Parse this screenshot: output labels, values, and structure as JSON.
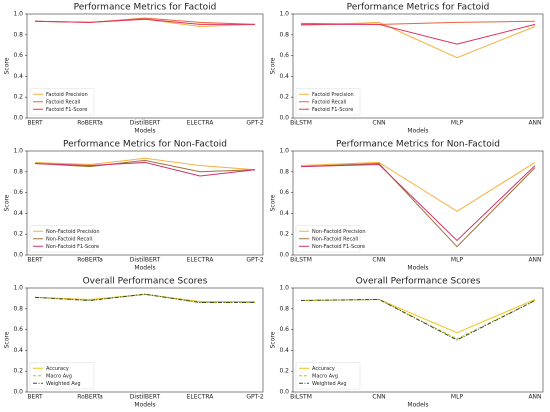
{
  "chart_data": [
    {
      "type": "line",
      "title": "Performance Metrics for Factoid",
      "x_label": "Models",
      "y_label": "Score",
      "categories": [
        "BERT",
        "RoBERTa",
        "DistilBERT",
        "ELECTRA",
        "GPT-2"
      ],
      "series": [
        {
          "name": "Factoid Precision",
          "color": "#f5b041",
          "linestyle": "solid",
          "values": [
            0.93,
            0.92,
            0.95,
            0.88,
            0.9
          ]
        },
        {
          "name": "Factoid Recall",
          "color": "#e8643c",
          "linestyle": "solid",
          "values": [
            0.93,
            0.92,
            0.96,
            0.92,
            0.9
          ]
        },
        {
          "name": "Factoid F1-Score",
          "color": "#e0305e",
          "linestyle": "solid",
          "values": [
            0.93,
            0.92,
            0.95,
            0.9,
            0.9
          ]
        }
      ],
      "ylim": [
        0,
        1
      ],
      "yticks": [
        {
          "value": 0,
          "label": "0.0"
        },
        0.2,
        0.4,
        0.6,
        0.8,
        {
          "value": 1,
          "label": "1.0"
        }
      ],
      "legend": "lower left"
    },
    {
      "type": "line",
      "title": "Performance Metrics for Factoid",
      "x_label": "Models",
      "y_label": "Score",
      "categories": [
        "BiLSTM",
        "CNN",
        "MLP",
        "ANN"
      ],
      "series": [
        {
          "name": "Factoid Precision",
          "color": "#f5b041",
          "linestyle": "solid",
          "values": [
            0.89,
            0.92,
            0.58,
            0.88
          ]
        },
        {
          "name": "Factoid Recall",
          "color": "#e8643c",
          "linestyle": "solid",
          "values": [
            0.91,
            0.9,
            0.92,
            0.93
          ]
        },
        {
          "name": "Factoid F1-Score",
          "color": "#e0305e",
          "linestyle": "solid",
          "values": [
            0.9,
            0.9,
            0.71,
            0.9
          ]
        }
      ],
      "ylim": [
        0,
        1
      ],
      "yticks": [
        {
          "value": 0,
          "label": "0.0"
        },
        0.2,
        0.4,
        0.6,
        0.8,
        {
          "value": 1,
          "label": "1.0"
        }
      ],
      "legend": "lower left"
    },
    {
      "type": "line",
      "title": "Performance Metrics for Non-Factoid",
      "x_label": "Models",
      "y_label": "Score",
      "categories": [
        "BERT",
        "RoBERTa",
        "DistilBERT",
        "ELECTRA",
        "GPT-2"
      ],
      "series": [
        {
          "name": "Non-Factoid Precision",
          "color": "#f5b041",
          "linestyle": "solid",
          "values": [
            0.89,
            0.87,
            0.93,
            0.86,
            0.82
          ]
        },
        {
          "name": "Non-Factoid Recall",
          "color": "#a0703a",
          "linestyle": "solid",
          "values": [
            0.88,
            0.85,
            0.91,
            0.8,
            0.82
          ]
        },
        {
          "name": "Non-Factoid F1-Score",
          "color": "#d0306a",
          "linestyle": "solid",
          "values": [
            0.88,
            0.86,
            0.89,
            0.76,
            0.82
          ]
        }
      ],
      "ylim": [
        0,
        1
      ],
      "yticks": [
        {
          "value": 0,
          "label": "0.0"
        },
        0.2,
        0.4,
        0.6,
        0.8,
        {
          "value": 1,
          "label": "1.0"
        }
      ],
      "legend": "lower left"
    },
    {
      "type": "line",
      "title": "Performance Metrics for Non-Factoid",
      "x_label": "Models",
      "y_label": "Score",
      "categories": [
        "BiLSTM",
        "CNN",
        "MLP",
        "ANN"
      ],
      "series": [
        {
          "name": "Non-Factoid Precision",
          "color": "#f5b041",
          "linestyle": "solid",
          "values": [
            0.86,
            0.89,
            0.42,
            0.89
          ]
        },
        {
          "name": "Non-Factoid Recall",
          "color": "#a0703a",
          "linestyle": "solid",
          "values": [
            0.85,
            0.88,
            0.08,
            0.84
          ]
        },
        {
          "name": "Non-Factoid F1-Score",
          "color": "#d0306a",
          "linestyle": "solid",
          "values": [
            0.85,
            0.87,
            0.14,
            0.86
          ]
        }
      ],
      "ylim": [
        0,
        1
      ],
      "yticks": [
        {
          "value": 0,
          "label": "0.0"
        },
        0.2,
        0.4,
        0.6,
        0.8,
        {
          "value": 1,
          "label": "1.0"
        }
      ],
      "legend": "lower left"
    },
    {
      "type": "line",
      "title": "Overall Performance Scores",
      "x_label": "Models",
      "y_label": "Score",
      "categories": [
        "BERT",
        "RoBERTa",
        "DistilBERT",
        "ELECTRA",
        "GPT-2"
      ],
      "series": [
        {
          "name": "Accuracy",
          "color": "#f0c419",
          "linestyle": "solid",
          "values": [
            0.91,
            0.89,
            0.94,
            0.87,
            0.87
          ]
        },
        {
          "name": "Macro Avg",
          "color": "#b8c020",
          "linestyle": "dashed",
          "values": [
            0.91,
            0.88,
            0.94,
            0.86,
            0.86
          ]
        },
        {
          "name": "Weighted Avg",
          "color": "#3a4a2a",
          "linestyle": "dashdot",
          "values": [
            0.91,
            0.88,
            0.94,
            0.86,
            0.86
          ]
        }
      ],
      "ylim": [
        0,
        1
      ],
      "yticks": [
        {
          "value": 0,
          "label": "0.0"
        },
        0.2,
        0.4,
        0.6,
        0.8,
        {
          "value": 1,
          "label": "1.0"
        }
      ],
      "legend": "lower left"
    },
    {
      "type": "line",
      "title": "Overall Performance Scores",
      "x_label": "Models",
      "y_label": "Score",
      "categories": [
        "BiLSTM",
        "CNN",
        "MLP",
        "ANN"
      ],
      "series": [
        {
          "name": "Accuracy",
          "color": "#f0c419",
          "linestyle": "solid",
          "values": [
            0.88,
            0.89,
            0.57,
            0.89
          ]
        },
        {
          "name": "Macro Avg",
          "color": "#b8c020",
          "linestyle": "dashed",
          "values": [
            0.88,
            0.89,
            0.51,
            0.88
          ]
        },
        {
          "name": "Weighted Avg",
          "color": "#3a4a2a",
          "linestyle": "dashdot",
          "values": [
            0.88,
            0.89,
            0.5,
            0.88
          ]
        }
      ],
      "ylim": [
        0,
        1
      ],
      "yticks": [
        {
          "value": 0,
          "label": "0.0"
        },
        0.2,
        0.4,
        0.6,
        0.8,
        {
          "value": 1,
          "label": "1.0"
        }
      ],
      "legend": "lower left"
    }
  ]
}
